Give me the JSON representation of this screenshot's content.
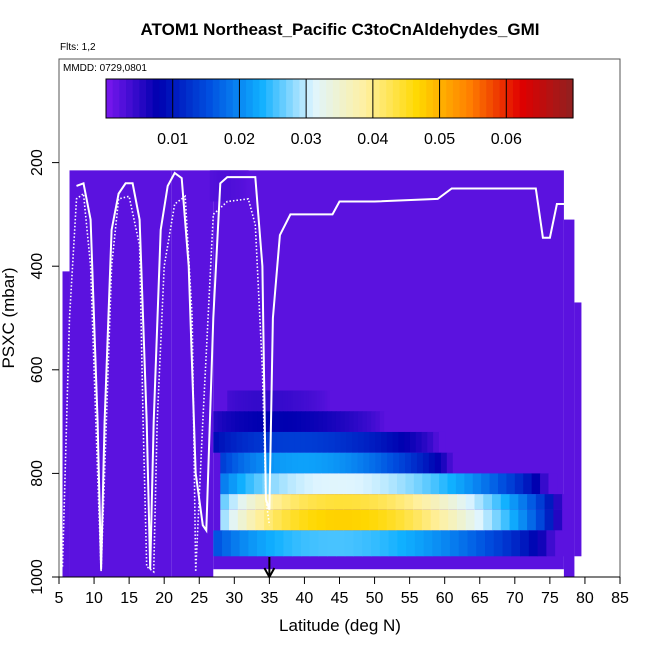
{
  "chart_data": {
    "type": "heatmap",
    "title": "ATOM1 Northeast_Pacific C3toCnAldehydes_GMI",
    "flights_label": "Flts: 1,2",
    "date_label": "MMDD: 0729,0801",
    "xlabel": "Latitude (deg N)",
    "ylabel": "PSXC (mbar)",
    "xlim": [
      5,
      85
    ],
    "ylim": [
      1000,
      0
    ],
    "x_ticks": [
      "5",
      "10",
      "15",
      "20",
      "25",
      "30",
      "35",
      "40",
      "45",
      "50",
      "55",
      "60",
      "65",
      "70",
      "75",
      "80",
      "85"
    ],
    "y_ticks": [
      "200",
      "400",
      "600",
      "800",
      "1000"
    ],
    "colorbar": {
      "range": [
        0,
        0.07
      ],
      "ticks": [
        "0.01",
        "0.02",
        "0.03",
        "0.04",
        "0.05",
        "0.06"
      ],
      "colors": [
        "#7b18ef",
        "#0000b0",
        "#0050e0",
        "#10b0ff",
        "#dff5ff",
        "#fff0a0",
        "#ffd800",
        "#ff8000",
        "#e00000",
        "#902020"
      ]
    },
    "marker_latitude": 35,
    "grid": false,
    "columns": [
      {
        "x": [
          5.5,
          6.5
        ],
        "top": 410,
        "bottom": 1000,
        "base": 0.002
      },
      {
        "x": [
          6.5,
          21
        ],
        "top": 215,
        "bottom": 1000,
        "base": 0.002
      },
      {
        "x": [
          21,
          27
        ],
        "top": 215,
        "bottom": 1000,
        "base": 0.002
      },
      {
        "x": [
          27,
          77
        ],
        "top": 215,
        "bottom": 985,
        "base": 0.002
      },
      {
        "x": [
          77,
          78.5
        ],
        "top": 310,
        "bottom": 1000,
        "base": 0.002
      },
      {
        "x": [
          78.5,
          79.5
        ],
        "top": 470,
        "bottom": 960,
        "base": 0.002
      }
    ],
    "bands": [
      {
        "p": [
          215,
          275
        ],
        "x": [
          26.5,
          32
        ],
        "v": 0.003
      },
      {
        "p": [
          640,
          680
        ],
        "x": [
          29,
          44
        ],
        "v": 0.005
      },
      {
        "p": [
          680,
          720
        ],
        "x": [
          27,
          52
        ],
        "v": 0.009
      },
      {
        "p": [
          720,
          760
        ],
        "x": [
          27,
          60
        ],
        "v": 0.016
      },
      {
        "p": [
          760,
          800
        ],
        "x": [
          28,
          62
        ],
        "v": 0.026
      },
      {
        "p": [
          800,
          840
        ],
        "x": [
          28,
          76
        ],
        "v": 0.037
      },
      {
        "p": [
          840,
          870
        ],
        "x": [
          28,
          78
        ],
        "v": 0.052
      },
      {
        "p": [
          870,
          910
        ],
        "x": [
          28,
          78
        ],
        "v": 0.056
      },
      {
        "p": [
          910,
          960
        ],
        "x": [
          27,
          77
        ],
        "v": 0.03
      }
    ],
    "flight_track_1": [
      [
        7.5,
        245
      ],
      [
        8.5,
        240
      ],
      [
        9.5,
        310
      ],
      [
        10.5,
        700
      ],
      [
        11,
        985
      ],
      [
        11.5,
        700
      ],
      [
        12.5,
        330
      ],
      [
        13.5,
        260
      ],
      [
        14.5,
        240
      ],
      [
        15.5,
        240
      ],
      [
        16.5,
        310
      ],
      [
        17.5,
        700
      ],
      [
        18,
        985
      ],
      [
        18.5,
        700
      ],
      [
        19.5,
        330
      ],
      [
        20.5,
        245
      ],
      [
        21.5,
        220
      ],
      [
        22.5,
        230
      ],
      [
        23.5,
        400
      ],
      [
        24.5,
        800
      ],
      [
        25.5,
        900
      ],
      [
        26,
        910
      ],
      [
        27,
        500
      ],
      [
        28,
        240
      ],
      [
        29,
        228
      ],
      [
        31,
        228
      ],
      [
        33,
        228
      ],
      [
        34,
        400
      ],
      [
        34.5,
        850
      ],
      [
        35,
        870
      ],
      [
        35.5,
        500
      ],
      [
        36.5,
        340
      ],
      [
        38,
        300
      ],
      [
        44,
        300
      ],
      [
        45,
        275
      ],
      [
        50,
        275
      ],
      [
        59,
        270
      ],
      [
        61,
        250
      ],
      [
        73,
        250
      ],
      [
        74,
        345
      ],
      [
        75,
        345
      ],
      [
        76,
        280
      ],
      [
        78,
        280
      ]
    ],
    "flight_track_2": [
      [
        5.5,
        980
      ],
      [
        6.5,
        500
      ],
      [
        7.5,
        270
      ],
      [
        8.5,
        260
      ],
      [
        9.5,
        400
      ],
      [
        10.5,
        800
      ],
      [
        11,
        990
      ],
      [
        11.5,
        800
      ],
      [
        12.5,
        400
      ],
      [
        13.5,
        270
      ],
      [
        15,
        265
      ],
      [
        16.5,
        360
      ],
      [
        17,
        700
      ],
      [
        17.5,
        980
      ],
      [
        18.5,
        990
      ],
      [
        19,
        700
      ],
      [
        20,
        400
      ],
      [
        21.5,
        280
      ],
      [
        23,
        265
      ],
      [
        24,
        500
      ],
      [
        24.5,
        990
      ],
      [
        25.5,
        700
      ],
      [
        27,
        300
      ],
      [
        29,
        275
      ],
      [
        32,
        270
      ],
      [
        33,
        320
      ],
      [
        34,
        600
      ],
      [
        34.5,
        850
      ],
      [
        35,
        900
      ]
    ]
  }
}
